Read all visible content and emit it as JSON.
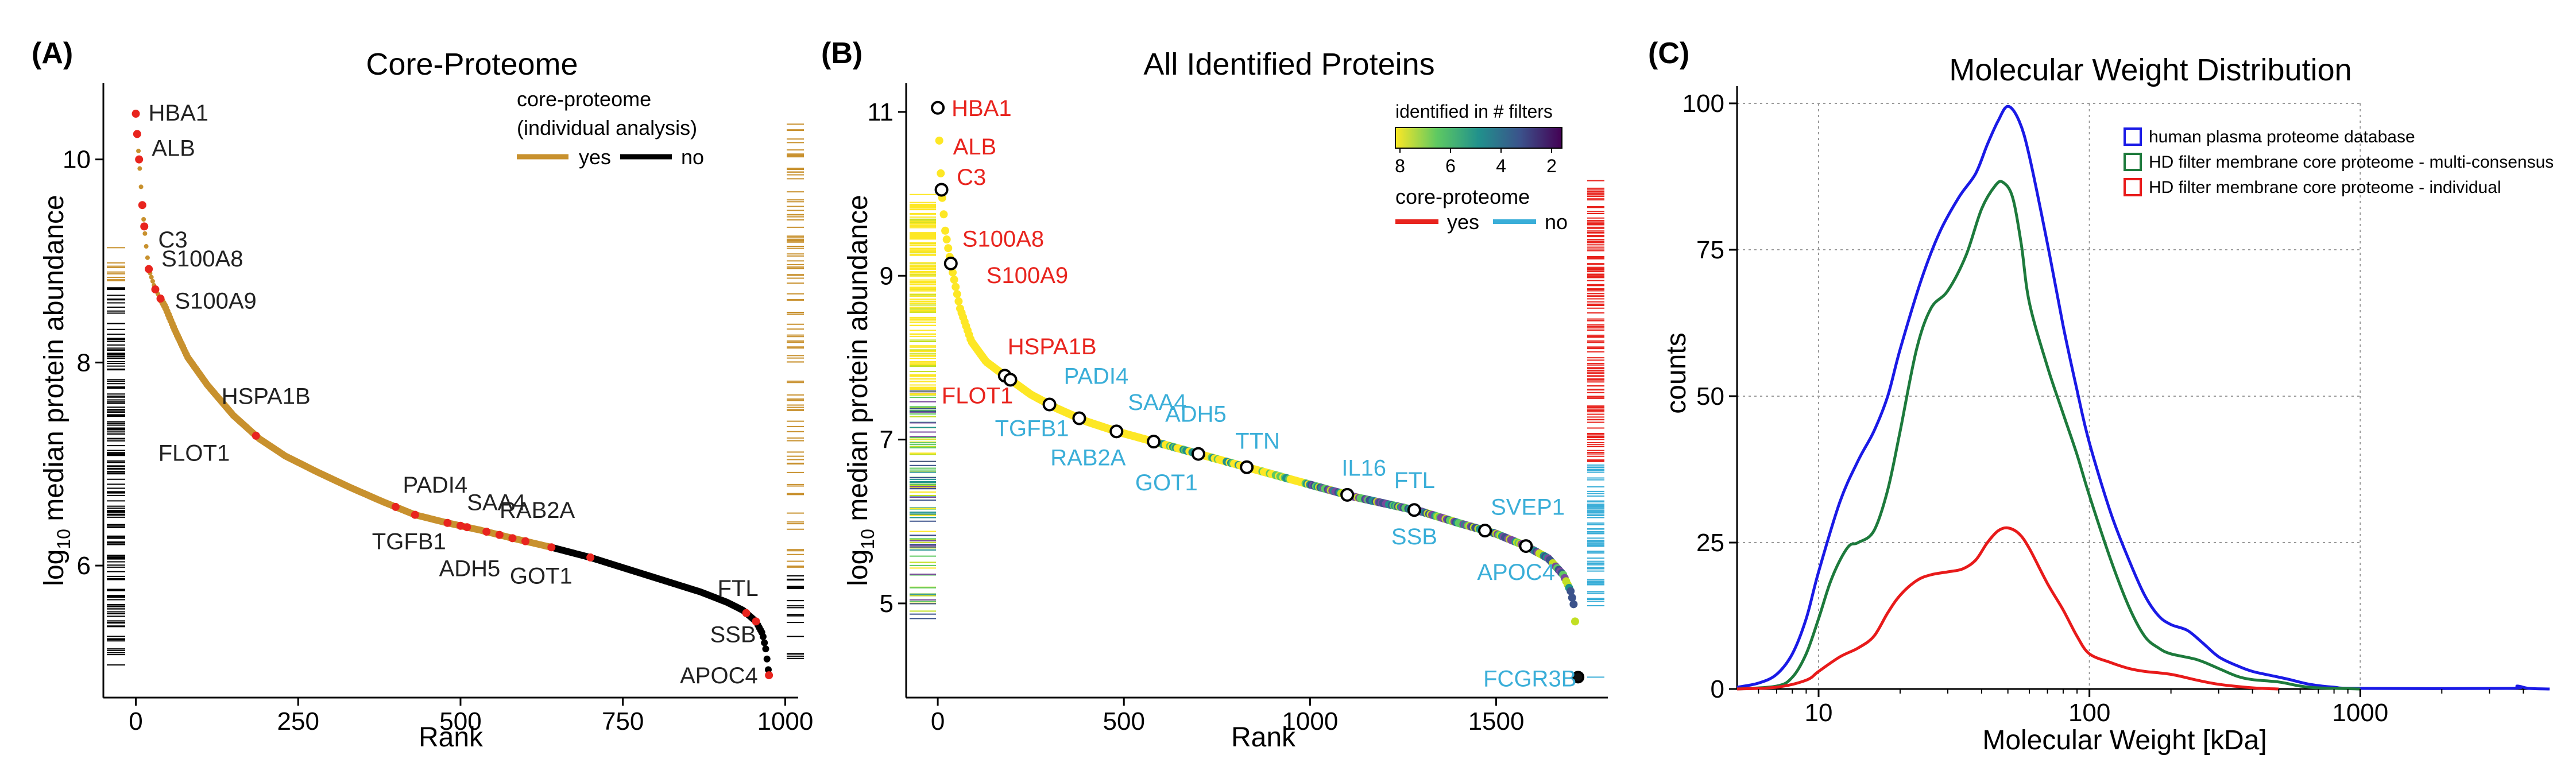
{
  "chart_data": [
    {
      "type": "scatter",
      "panel_label": "(A)",
      "title": "Core-Proteome",
      "xlabel": "Rank",
      "ylabel_main": "log",
      "ylabel_sub": "10",
      "ylabel_rest": " median protein abundance",
      "xlim": [
        -50,
        1020
      ],
      "ylim": [
        4.7,
        10.75
      ],
      "xticks": [
        0,
        250,
        500,
        750,
        1000
      ],
      "yticks": [
        6,
        8,
        10
      ],
      "legend": {
        "title_line1": "core-proteome",
        "title_line2": "(individual analysis)",
        "yes_label": "yes",
        "no_label": "no",
        "yes_color": "#c8912e",
        "no_color": "#000000"
      },
      "curve": [
        [
          0,
          10.45
        ],
        [
          2,
          10.25
        ],
        [
          5,
          10.0
        ],
        [
          10,
          9.55
        ],
        [
          15,
          9.2
        ],
        [
          20,
          8.92
        ],
        [
          30,
          8.72
        ],
        [
          45,
          8.55
        ],
        [
          60,
          8.32
        ],
        [
          80,
          8.05
        ],
        [
          110,
          7.78
        ],
        [
          150,
          7.48
        ],
        [
          190,
          7.25
        ],
        [
          230,
          7.08
        ],
        [
          280,
          6.92
        ],
        [
          330,
          6.77
        ],
        [
          380,
          6.63
        ],
        [
          430,
          6.5
        ],
        [
          480,
          6.42
        ],
        [
          530,
          6.35
        ],
        [
          580,
          6.27
        ],
        [
          640,
          6.18
        ],
        [
          700,
          6.08
        ],
        [
          760,
          5.96
        ],
        [
          820,
          5.84
        ],
        [
          870,
          5.74
        ],
        [
          910,
          5.64
        ],
        [
          935,
          5.56
        ],
        [
          955,
          5.45
        ],
        [
          965,
          5.33
        ],
        [
          970,
          5.18
        ],
        [
          973,
          5.03
        ],
        [
          975,
          4.92
        ]
      ],
      "red_ranks": [
        0,
        2,
        5,
        10,
        13,
        20,
        30,
        38,
        185,
        400,
        430,
        480,
        500,
        510,
        540,
        560,
        580,
        600,
        640,
        700,
        940,
        955,
        975
      ],
      "labels": [
        {
          "text": "HBA1",
          "x": 0,
          "y": 10.45,
          "dx": 22,
          "dy": 12
        },
        {
          "text": "ALB",
          "x": 5,
          "y": 10.0,
          "dx": 22,
          "dy": -6
        },
        {
          "text": "C3",
          "x": 15,
          "y": 9.2,
          "dx": 22,
          "dy": 12
        },
        {
          "text": "S100A8",
          "x": 20,
          "y": 8.9,
          "dx": 22,
          "dy": -8
        },
        {
          "text": "S100A9",
          "x": 30,
          "y": 8.7,
          "dx": 34,
          "dy": 30
        },
        {
          "text": "HSPA1B",
          "x": 185,
          "y": 7.32,
          "dx": -60,
          "dy": -48
        },
        {
          "text": "FLOT1",
          "x": 185,
          "y": 7.28,
          "dx": -170,
          "dy": 44
        },
        {
          "text": "PADI4",
          "x": 420,
          "y": 6.55,
          "dx": -10,
          "dy": -30
        },
        {
          "text": "SAA4",
          "x": 510,
          "y": 6.4,
          "dx": 0,
          "dy": -26
        },
        {
          "text": "TGFB1",
          "x": 430,
          "y": 6.5,
          "dx": -75,
          "dy": 60
        },
        {
          "text": "RAB2A",
          "x": 600,
          "y": 6.3,
          "dx": -45,
          "dy": -30
        },
        {
          "text": "ADH5",
          "x": 520,
          "y": 6.37,
          "dx": -60,
          "dy": 84
        },
        {
          "text": "GOT1",
          "x": 660,
          "y": 6.15,
          "dx": -95,
          "dy": 58
        },
        {
          "text": "FTL",
          "x": 940,
          "y": 5.53,
          "dx": -50,
          "dy": -30
        },
        {
          "text": "SSB",
          "x": 955,
          "y": 5.45,
          "dx": -80,
          "dy": 36
        },
        {
          "text": "APOC4",
          "x": 975,
          "y": 4.92,
          "dx": -155,
          "dy": 14
        }
      ]
    },
    {
      "type": "scatter",
      "panel_label": "(B)",
      "title": "All Identified Proteins",
      "xlabel": "Rank",
      "ylabel_main": "log",
      "ylabel_sub": "10",
      "ylabel_rest": " median protein abundance",
      "xlim": [
        -85,
        1800
      ],
      "ylim": [
        3.85,
        11.35
      ],
      "xticks": [
        0,
        500,
        1000,
        1500
      ],
      "yticks": [
        5,
        7,
        9,
        11
      ],
      "colorbar": {
        "title": "identified in # filters",
        "tick_labels": [
          "8",
          "6",
          "4",
          "2"
        ],
        "stops": [
          "#fde725",
          "#5ec962",
          "#21918c",
          "#3b528b",
          "#440154"
        ]
      },
      "legend": {
        "title": "core-proteome",
        "yes_label": "yes",
        "no_label": "no",
        "yes_color": "#e8241e",
        "no_color": "#3aaed8"
      },
      "curve": [
        [
          0,
          11.05
        ],
        [
          5,
          10.55
        ],
        [
          10,
          10.05
        ],
        [
          20,
          9.55
        ],
        [
          35,
          9.15
        ],
        [
          60,
          8.6
        ],
        [
          90,
          8.2
        ],
        [
          130,
          7.95
        ],
        [
          180,
          7.78
        ],
        [
          250,
          7.55
        ],
        [
          320,
          7.38
        ],
        [
          400,
          7.22
        ],
        [
          480,
          7.1
        ],
        [
          560,
          7.0
        ],
        [
          640,
          6.9
        ],
        [
          720,
          6.8
        ],
        [
          800,
          6.7
        ],
        [
          880,
          6.6
        ],
        [
          960,
          6.5
        ],
        [
          1040,
          6.4
        ],
        [
          1120,
          6.3
        ],
        [
          1200,
          6.22
        ],
        [
          1300,
          6.12
        ],
        [
          1400,
          5.98
        ],
        [
          1500,
          5.85
        ],
        [
          1580,
          5.7
        ],
        [
          1640,
          5.55
        ],
        [
          1680,
          5.35
        ],
        [
          1700,
          5.15
        ],
        [
          1710,
          4.95
        ],
        [
          1720,
          4.1
        ]
      ],
      "circles": [
        0,
        10,
        35,
        180,
        195,
        300,
        380,
        480,
        580,
        700,
        830,
        1100,
        1280,
        1470,
        1580,
        1720
      ],
      "labels": [
        {
          "text": "HBA1",
          "x": 0,
          "y": 11.05,
          "dx": 24,
          "dy": 14,
          "color": "#e8241e"
        },
        {
          "text": "ALB",
          "x": 10,
          "y": 10.55,
          "dx": 20,
          "dy": 10,
          "color": "#e8241e"
        },
        {
          "text": "C3",
          "x": 20,
          "y": 9.9,
          "dx": 20,
          "dy": -30,
          "color": "#e8241e"
        },
        {
          "text": "S100A8",
          "x": 35,
          "y": 9.2,
          "dx": 20,
          "dy": -22,
          "color": "#e8241e"
        },
        {
          "text": "S100A9",
          "x": 35,
          "y": 9.15,
          "dx": 62,
          "dy": 34,
          "color": "#e8241e"
        },
        {
          "text": "HSPA1B",
          "x": 180,
          "y": 7.9,
          "dx": 5,
          "dy": -20,
          "color": "#e8241e"
        },
        {
          "text": "FLOT1",
          "x": 180,
          "y": 7.85,
          "dx": -110,
          "dy": 58,
          "color": "#e8241e"
        },
        {
          "text": "PADI4",
          "x": 300,
          "y": 7.5,
          "dx": 25,
          "dy": -26,
          "color": "#3aaed8"
        },
        {
          "text": "TGFB1",
          "x": 300,
          "y": 7.45,
          "dx": -95,
          "dy": 58,
          "color": "#3aaed8"
        },
        {
          "text": "SAA4",
          "x": 480,
          "y": 7.15,
          "dx": 20,
          "dy": -30,
          "color": "#3aaed8"
        },
        {
          "text": "ADH5",
          "x": 580,
          "y": 7.02,
          "dx": 20,
          "dy": -28,
          "color": "#3aaed8"
        },
        {
          "text": "RAB2A",
          "x": 480,
          "y": 7.12,
          "dx": -115,
          "dy": 62,
          "color": "#3aaed8"
        },
        {
          "text": "GOT1",
          "x": 700,
          "y": 6.8,
          "dx": -110,
          "dy": 60,
          "color": "#3aaed8"
        },
        {
          "text": "TTN",
          "x": 830,
          "y": 6.65,
          "dx": -20,
          "dy": -34,
          "color": "#3aaed8"
        },
        {
          "text": "IL16",
          "x": 1100,
          "y": 6.35,
          "dx": -10,
          "dy": -30,
          "color": "#3aaed8"
        },
        {
          "text": "FTL",
          "x": 1280,
          "y": 6.17,
          "dx": -35,
          "dy": -34,
          "color": "#3aaed8"
        },
        {
          "text": "SSB",
          "x": 1280,
          "y": 6.17,
          "dx": -40,
          "dy": 64,
          "color": "#3aaed8"
        },
        {
          "text": "SVEP1",
          "x": 1470,
          "y": 5.9,
          "dx": 10,
          "dy": -26,
          "color": "#3aaed8"
        },
        {
          "text": "APOC4",
          "x": 1580,
          "y": 5.72,
          "dx": -85,
          "dy": 62,
          "color": "#3aaed8"
        },
        {
          "text": "FCGR3B",
          "x": 1720,
          "y": 4.1,
          "dx": -165,
          "dy": 16,
          "color": "#3aaed8"
        }
      ]
    },
    {
      "type": "line",
      "panel_label": "(C)",
      "title": "Molecular Weight Distribution",
      "xlabel": "Molecular Weight [kDa]",
      "ylabel": "counts",
      "xscale": "log",
      "xlim": [
        5,
        5000
      ],
      "ylim": [
        0,
        100
      ],
      "xticks": [
        10,
        100,
        1000
      ],
      "xtick_labels": [
        "10",
        "100",
        "1000"
      ],
      "yticks": [
        0,
        25,
        50,
        75,
        100
      ],
      "legend_position": "top-right",
      "series": [
        {
          "name": "human plasma proteome database",
          "color": "#1a1ae6",
          "points": [
            [
              5,
              0.3
            ],
            [
              6,
              1
            ],
            [
              7,
              2.5
            ],
            [
              8,
              6
            ],
            [
              9,
              12
            ],
            [
              10,
              20
            ],
            [
              12,
              32
            ],
            [
              14,
              39
            ],
            [
              16,
              44
            ],
            [
              18,
              50
            ],
            [
              20,
              58
            ],
            [
              24,
              70
            ],
            [
              28,
              78
            ],
            [
              33,
              84
            ],
            [
              38,
              88
            ],
            [
              42,
              93
            ],
            [
              46,
              97
            ],
            [
              50,
              99.5
            ],
            [
              55,
              97
            ],
            [
              60,
              91
            ],
            [
              70,
              76
            ],
            [
              80,
              62
            ],
            [
              90,
              51
            ],
            [
              100,
              42
            ],
            [
              120,
              30
            ],
            [
              140,
              22
            ],
            [
              160,
              16
            ],
            [
              180,
              12.5
            ],
            [
              200,
              11
            ],
            [
              230,
              10
            ],
            [
              260,
              8
            ],
            [
              300,
              5.5
            ],
            [
              350,
              4
            ],
            [
              400,
              3
            ],
            [
              480,
              2.2
            ],
            [
              550,
              1.6
            ],
            [
              650,
              0.8
            ],
            [
              800,
              0.3
            ],
            [
              1000,
              0.1
            ],
            [
              3500,
              0.1
            ],
            [
              3800,
              0.5
            ],
            [
              4200,
              0.1
            ],
            [
              5000,
              0
            ]
          ]
        },
        {
          "name": "HD filter membrane core proteome - multi-consensus",
          "color": "#1d7a3c",
          "points": [
            [
              5,
              0
            ],
            [
              7,
              0.5
            ],
            [
              8,
              2
            ],
            [
              9,
              6
            ],
            [
              10,
              12
            ],
            [
              11,
              18
            ],
            [
              12,
              22
            ],
            [
              13,
              24.5
            ],
            [
              14,
              25
            ],
            [
              16,
              27
            ],
            [
              18,
              34
            ],
            [
              20,
              44
            ],
            [
              23,
              58
            ],
            [
              26,
              65
            ],
            [
              30,
              68
            ],
            [
              35,
              74
            ],
            [
              40,
              82
            ],
            [
              45,
              86
            ],
            [
              48,
              86.5
            ],
            [
              52,
              84
            ],
            [
              56,
              76
            ],
            [
              60,
              66
            ],
            [
              70,
              55
            ],
            [
              80,
              47
            ],
            [
              90,
              40
            ],
            [
              100,
              33
            ],
            [
              120,
              22
            ],
            [
              140,
              14
            ],
            [
              160,
              9
            ],
            [
              180,
              7
            ],
            [
              200,
              6
            ],
            [
              250,
              5
            ],
            [
              300,
              3.5
            ],
            [
              350,
              2.2
            ],
            [
              400,
              1.6
            ],
            [
              500,
              1.2
            ],
            [
              600,
              0.5
            ],
            [
              700,
              0.2
            ],
            [
              1000,
              0
            ]
          ]
        },
        {
          "name": "HD filter membrane core proteome - individual",
          "color": "#e81a1a",
          "points": [
            [
              5,
              0
            ],
            [
              7,
              0.3
            ],
            [
              9,
              1.5
            ],
            [
              10,
              3
            ],
            [
              12,
              5.5
            ],
            [
              14,
              7
            ],
            [
              16,
              9
            ],
            [
              18,
              13
            ],
            [
              20,
              16
            ],
            [
              23,
              18.5
            ],
            [
              26,
              19.5
            ],
            [
              30,
              20
            ],
            [
              34,
              20.5
            ],
            [
              38,
              22
            ],
            [
              42,
              25
            ],
            [
              46,
              27
            ],
            [
              50,
              27.5
            ],
            [
              55,
              26.5
            ],
            [
              60,
              24
            ],
            [
              70,
              18
            ],
            [
              80,
              13.5
            ],
            [
              90,
              9
            ],
            [
              100,
              6
            ],
            [
              120,
              4.5
            ],
            [
              140,
              3.5
            ],
            [
              160,
              3
            ],
            [
              200,
              2.5
            ],
            [
              250,
              1.5
            ],
            [
              300,
              0.8
            ],
            [
              400,
              0.2
            ],
            [
              500,
              0
            ]
          ]
        }
      ]
    }
  ]
}
